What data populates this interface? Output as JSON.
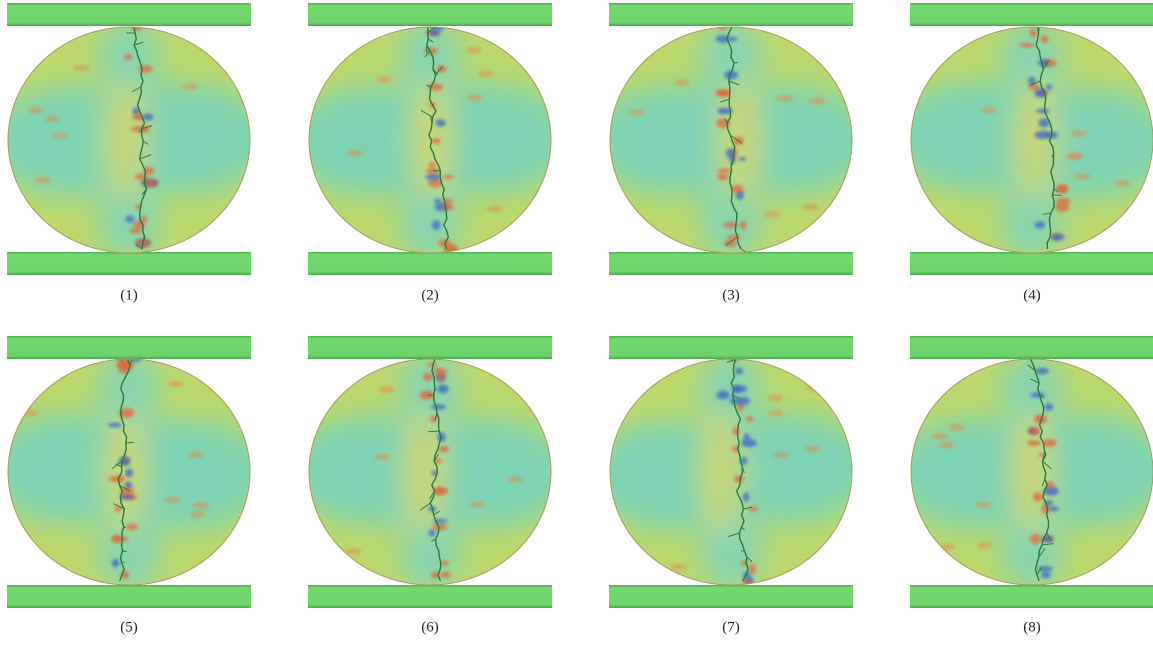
{
  "panels": [
    {
      "label": "(1)"
    },
    {
      "label": "(2)"
    },
    {
      "label": "(3)"
    },
    {
      "label": "(4)"
    },
    {
      "label": "(5)"
    },
    {
      "label": "(6)"
    },
    {
      "label": "(7)"
    },
    {
      "label": "(8)"
    }
  ]
}
